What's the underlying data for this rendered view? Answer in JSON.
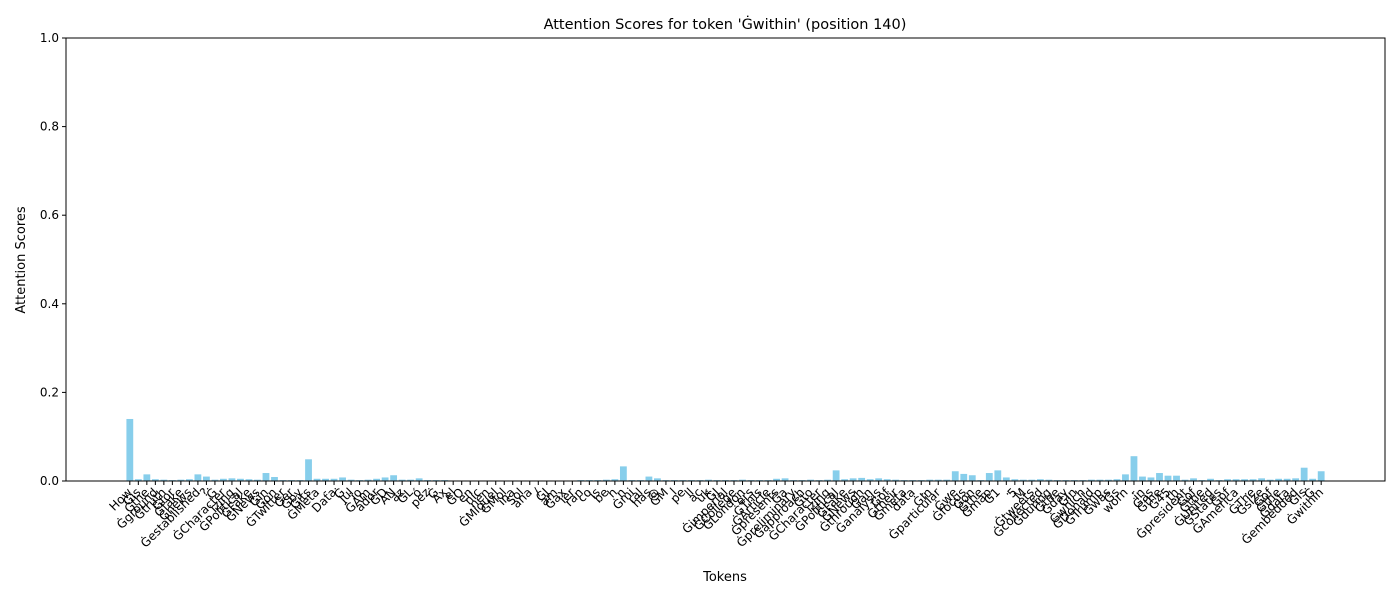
{
  "chart_data": {
    "type": "bar",
    "title": "Attention Scores for token 'Ġwithin' (position 140)",
    "x_label": "Tokens",
    "y_label": "Attention Scores",
    "color": "#87ceeb",
    "categories": [
      "How",
      "Ġis",
      "Ġthe",
      "Ġground",
      "Ġtruth",
      "Ġfor",
      "Ġfake",
      "Ġnews",
      "Ġestablished",
      "?",
      "Ġ",
      "ĠCharacter",
      "izing",
      "ĠPolitical",
      "ĠFake",
      "ĠNews",
      "Ġin",
      "Ġon",
      "ĠTwitter",
      "Ġer",
      "Ġby",
      "Ġits",
      "ĠMeta",
      "-",
      "Data",
      "Ġ",
      "Jul",
      "io",
      "ĠAm",
      "ador",
      "ĠD",
      "AN",
      "az",
      "ĠL",
      "ó",
      "pez",
      "Ġ",
      "Ax",
      "el",
      "ĠO",
      "en",
      "nic",
      "nen",
      "ĠMiguel",
      "ĠMol",
      "ina",
      "Sol",
      "ana",
      "/",
      "ĠJ",
      "am",
      "Ġax",
      "ier",
      "ran",
      "co",
      "is",
      "be",
      "h",
      "n",
      "Ġmi",
      "ral",
      "has",
      "@",
      "ĠM",
      "l",
      "pe",
      "ll",
      "ac",
      "uk",
      "ĠJ",
      "Ġimperial",
      "ĠCollege",
      "ĠLondon",
      "ers",
      "ĠThis",
      "ĠArticle",
      "Ġpresents",
      "Ġa",
      "Ġpreliminary",
      "Ġapproach",
      "Ġto",
      "ĠCharacter",
      "izing",
      "ĠPolitical",
      "ĠFake",
      "ĠNews",
      "Ġthrough",
      "Ġan",
      "Ġanalysis",
      "Ġof",
      "Ġtheir",
      "Ġmeta",
      "data",
      ".",
      "ĠIn",
      "Ġparticular",
      ",",
      "Ġwe",
      "Ġfocus",
      "Ġon",
      "Ġthe",
      "Ġmap",
      "Ġ1",
      ".",
      "5",
      "M",
      "Ġtweets",
      "Ġcollected",
      "Ġduring",
      "Ġthe",
      "Ġday",
      "Ġin",
      "Ġwhich",
      "ĠDonald",
      "ĠTrump",
      "Ġwas",
      "Ġs",
      "worn",
      "-",
      "in",
      "Ġas",
      "Ġthe",
      "Ġ45",
      "th",
      "Ġpresident",
      "Ġof",
      "Ġthe",
      "ĠUnited",
      "ĠStates",
      "Ġof",
      "ĠAmerica",
      ".",
      "ĠThe",
      "Ġsize",
      "Ġof",
      "Ġthe",
      "Ġdata",
      "Ġembedded",
      "Ġis",
      "Ġ",
      "Ġwithin"
    ],
    "values": [
      0.14,
      0.004,
      0.015,
      0.004,
      0.003,
      0.002,
      0.003,
      0.004,
      0.015,
      0.01,
      0.003,
      0.005,
      0.006,
      0.005,
      0.004,
      0.003,
      0.018,
      0.009,
      0.002,
      0.002,
      0.002,
      0.049,
      0.005,
      0.005,
      0.005,
      0.008,
      0.003,
      0.002,
      0.003,
      0.005,
      0.008,
      0.013,
      0.003,
      0.003,
      0.006,
      0.002,
      0.002,
      0.002,
      0.001,
      0.001,
      0.001,
      0.001,
      0.001,
      0.001,
      0.001,
      0.001,
      0.001,
      0.001,
      0.001,
      0.001,
      0.001,
      0.001,
      0.001,
      0.002,
      0.002,
      0.002,
      0.003,
      0.004,
      0.033,
      0.002,
      0.002,
      0.01,
      0.006,
      0.002,
      0.002,
      0.002,
      0.002,
      0.002,
      0.003,
      0.002,
      0.002,
      0.002,
      0.003,
      0.002,
      0.002,
      0.002,
      0.005,
      0.006,
      0.002,
      0.002,
      0.003,
      0.002,
      0.003,
      0.024,
      0.004,
      0.006,
      0.007,
      0.004,
      0.006,
      0.004,
      0.003,
      0.002,
      0.002,
      0.002,
      0.003,
      0.003,
      0.003,
      0.022,
      0.016,
      0.013,
      0.002,
      0.018,
      0.024,
      0.008,
      0.004,
      0.003,
      0.003,
      0.004,
      0.003,
      0.002,
      0.002,
      0.002,
      0.002,
      0.003,
      0.003,
      0.003,
      0.004,
      0.015,
      0.056,
      0.01,
      0.008,
      0.018,
      0.012,
      0.012,
      0.003,
      0.006,
      0.002,
      0.005,
      0.002,
      0.004,
      0.004,
      0.004,
      0.004,
      0.006,
      0.003,
      0.005,
      0.005,
      0.006,
      0.03,
      0.005,
      0.022
    ],
    "ylim": [
      0,
      1
    ],
    "yticks": [
      {
        "value": 0,
        "label": "0.0"
      },
      {
        "value": 0.2,
        "label": "0.2"
      },
      {
        "value": 0.4,
        "label": "0.4"
      },
      {
        "value": 0.6,
        "label": "0.6"
      },
      {
        "value": 0.8,
        "label": "0.8"
      },
      {
        "value": 1,
        "label": "1.0"
      }
    ]
  }
}
